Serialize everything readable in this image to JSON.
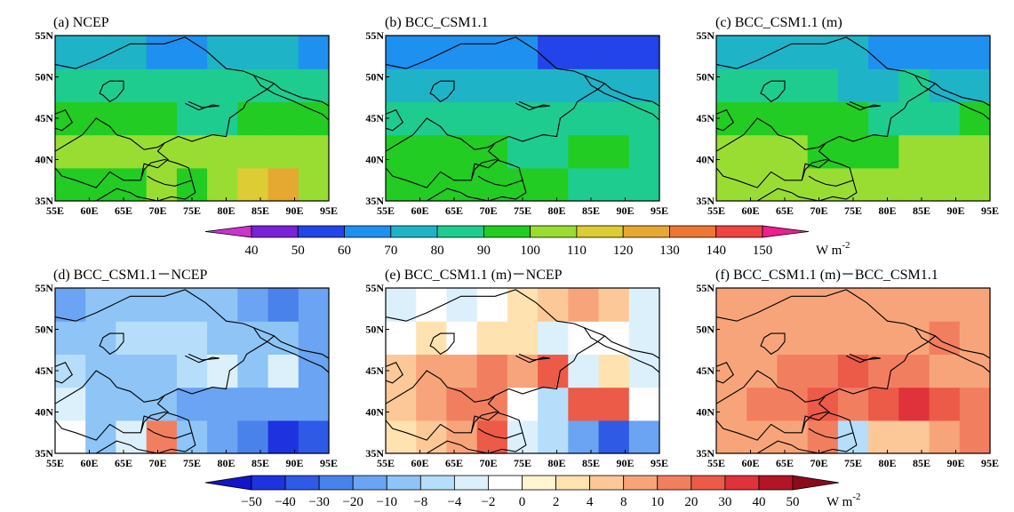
{
  "figure": {
    "panels": [
      {
        "label": "(a) NCEP",
        "field": "a"
      },
      {
        "label": "(b) BCC_CSM1.1",
        "field": "b"
      },
      {
        "label": "(c) BCC_CSM1.1 (m)",
        "field": "c"
      },
      {
        "label": "(d) BCC_CSM1.1－NCEP",
        "field": "d"
      },
      {
        "label": "(e) BCC_CSM1.1 (m)－NCEP",
        "field": "e"
      },
      {
        "label": "(f) BCC_CSM1.1 (m)－BCC_CSM1.1",
        "field": "f"
      }
    ],
    "lon_ticks": [
      "55E",
      "60E",
      "65E",
      "70E",
      "75E",
      "80E",
      "85E",
      "90E",
      "95E"
    ],
    "lat_ticks": [
      "35N",
      "40N",
      "45N",
      "50N",
      "55N"
    ],
    "colorbar_top": {
      "levels": [
        "40",
        "50",
        "60",
        "70",
        "80",
        "90",
        "100",
        "110",
        "120",
        "130",
        "140",
        "150"
      ],
      "colors": [
        "#CC33CC",
        "#7A22D6",
        "#2244E8",
        "#1E90F0",
        "#1FB3C8",
        "#1ECC90",
        "#22CC22",
        "#99DD33",
        "#DDCC33",
        "#E5A830",
        "#EE7733",
        "#EE4444",
        "#EE1E8C"
      ],
      "unit": "W m",
      "unit_exp": "-2"
    },
    "colorbar_bottom": {
      "levels": [
        "-50",
        "-40",
        "-30",
        "-20",
        "-10",
        "-8",
        "-4",
        "-2",
        "0",
        "2",
        "4",
        "8",
        "10",
        "20",
        "30",
        "40",
        "50"
      ],
      "colors": [
        "#1414C8",
        "#1E32E0",
        "#2E5AE6",
        "#4A82EC",
        "#6AA4F2",
        "#8EC4F6",
        "#B6DEFA",
        "#DCF0FC",
        "#FFFFFF",
        "#FFF4D2",
        "#FEE2B0",
        "#FCC898",
        "#F8A47A",
        "#F27E60",
        "#EC5A48",
        "#E0323A",
        "#B41428",
        "#8C0A1C"
      ],
      "unit": "W m",
      "unit_exp": "-2"
    }
  },
  "chart_data": {
    "type": "heatmap",
    "x": [
      55,
      60,
      65,
      70,
      75,
      80,
      85,
      90,
      95
    ],
    "y": [
      35,
      40,
      45,
      50,
      55
    ],
    "fields": {
      "a": [
        [
          95,
          97,
          95,
          100,
          95,
          105,
          115,
          120,
          105
        ],
        [
          100,
          100,
          100,
          105,
          100,
          100,
          100,
          100,
          100
        ],
        [
          90,
          90,
          90,
          90,
          88,
          88,
          90,
          92,
          95
        ],
        [
          82,
          82,
          82,
          82,
          80,
          80,
          82,
          85,
          82
        ],
        [
          72,
          72,
          70,
          68,
          68,
          70,
          72,
          72,
          68
        ]
      ],
      "b": [
        [
          95,
          95,
          95,
          90,
          90,
          90,
          88,
          85,
          85
        ],
        [
          92,
          92,
          90,
          90,
          88,
          88,
          90,
          92,
          88
        ],
        [
          85,
          85,
          85,
          82,
          82,
          82,
          82,
          82,
          80
        ],
        [
          75,
          75,
          75,
          75,
          75,
          72,
          72,
          70,
          70
        ],
        [
          62,
          62,
          62,
          60,
          60,
          58,
          55,
          50,
          50
        ]
      ],
      "c": [
        [
          105,
          105,
          105,
          102,
          100,
          100,
          100,
          100,
          100
        ],
        [
          100,
          100,
          100,
          98,
          95,
          95,
          100,
          105,
          100
        ],
        [
          95,
          92,
          92,
          90,
          90,
          88,
          88,
          88,
          90
        ],
        [
          82,
          80,
          80,
          80,
          78,
          78,
          80,
          78,
          72
        ],
        [
          75,
          72,
          72,
          70,
          70,
          68,
          65,
          62,
          60
        ]
      ],
      "d": [
        [
          -2,
          -10,
          -4,
          15,
          -10,
          -20,
          -30,
          -50,
          -40
        ],
        [
          -4,
          -10,
          -10,
          -10,
          -20,
          -20,
          -20,
          -20,
          -20
        ],
        [
          -8,
          -10,
          -10,
          -10,
          -8,
          -4,
          -10,
          -4,
          -20
        ],
        [
          -10,
          -10,
          -8,
          -8,
          -8,
          -10,
          -10,
          -10,
          -20
        ],
        [
          -20,
          -10,
          -10,
          -10,
          -10,
          -10,
          -20,
          -30,
          -20
        ]
      ],
      "e": [
        [
          2,
          4,
          8,
          20,
          -4,
          -8,
          -20,
          -40,
          -20
        ],
        [
          4,
          8,
          10,
          10,
          -2,
          -8,
          20,
          20,
          -2
        ],
        [
          4,
          8,
          8,
          10,
          8,
          20,
          -4,
          2,
          -4
        ],
        [
          -2,
          2,
          -2,
          2,
          2,
          -4,
          -2,
          -2,
          -4
        ],
        [
          -4,
          -2,
          -4,
          -2,
          2,
          4,
          8,
          4,
          -4
        ]
      ],
      "f": [
        [
          8,
          8,
          8,
          10,
          -8,
          4,
          4,
          8,
          10
        ],
        [
          8,
          10,
          10,
          20,
          10,
          20,
          30,
          20,
          10
        ],
        [
          8,
          8,
          10,
          10,
          20,
          10,
          10,
          8,
          8
        ],
        [
          8,
          8,
          8,
          8,
          8,
          8,
          8,
          10,
          8
        ],
        [
          8,
          8,
          8,
          8,
          8,
          8,
          8,
          8,
          8
        ]
      ]
    },
    "xlabel": "",
    "ylabel": "",
    "xlim": [
      55,
      95
    ],
    "ylim": [
      35,
      55
    ]
  }
}
